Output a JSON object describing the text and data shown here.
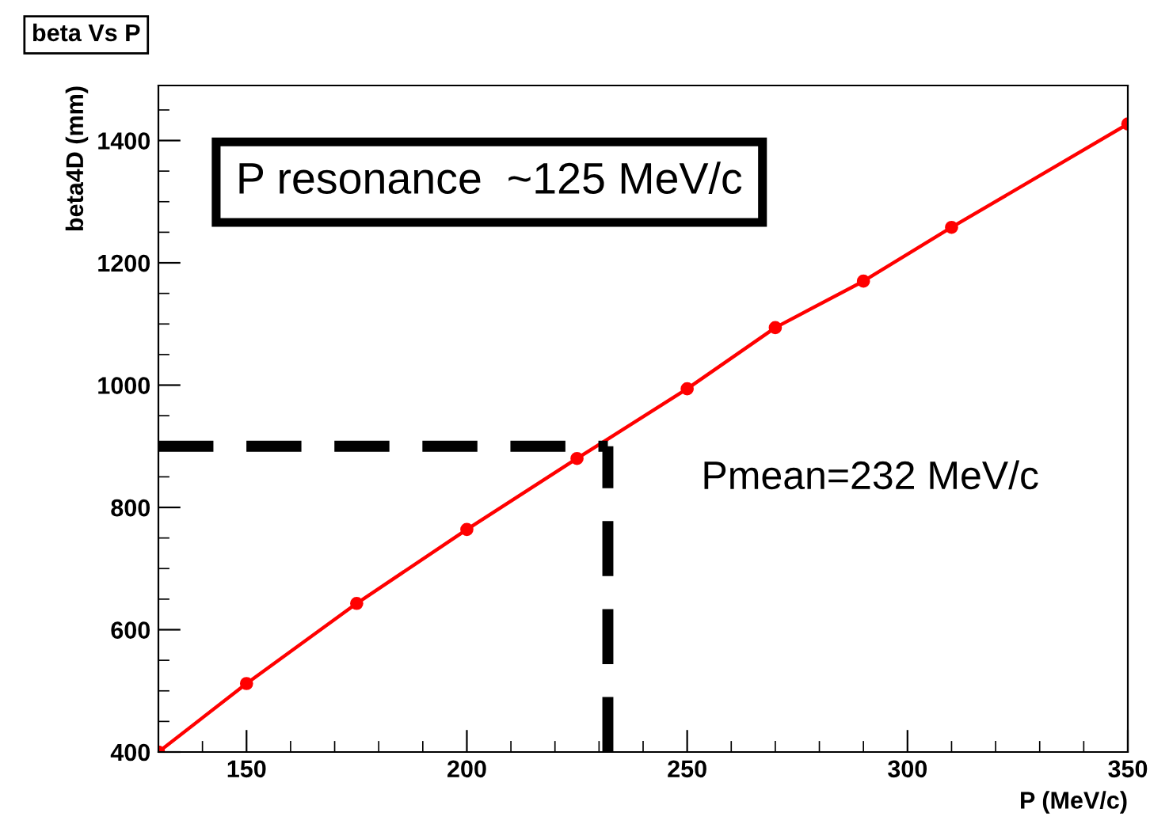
{
  "chart_data": {
    "type": "line",
    "title": "beta Vs P",
    "xlabel": "P (MeV/c)",
    "ylabel": "beta4D (mm)",
    "x": [
      130,
      150,
      175,
      200,
      225,
      250,
      270,
      290,
      310,
      350
    ],
    "series": [
      {
        "color": "#ff0000",
        "values": [
          400,
          512,
          643,
          764,
          880,
          994,
          1094,
          1170,
          1258,
          1427
        ]
      }
    ],
    "marker": "circle",
    "line_style": "solid",
    "xlim": [
      130,
      350
    ],
    "xticks": [
      150,
      200,
      250,
      300,
      350
    ],
    "ylim": [
      400,
      1490
    ],
    "yticks": [
      400,
      600,
      800,
      1000,
      1200,
      1400
    ],
    "grid": false,
    "legend": false,
    "ref_lines": [
      {
        "axis": "y",
        "value": 900,
        "color": "#000000",
        "line_style": "dashed"
      },
      {
        "axis": "x",
        "value": 232,
        "label": "Pmean=232 MeV/c",
        "color": "#000000",
        "line_style": "dashed"
      }
    ],
    "annotations": [
      "P resonance  ~125 MeV/c"
    ]
  }
}
